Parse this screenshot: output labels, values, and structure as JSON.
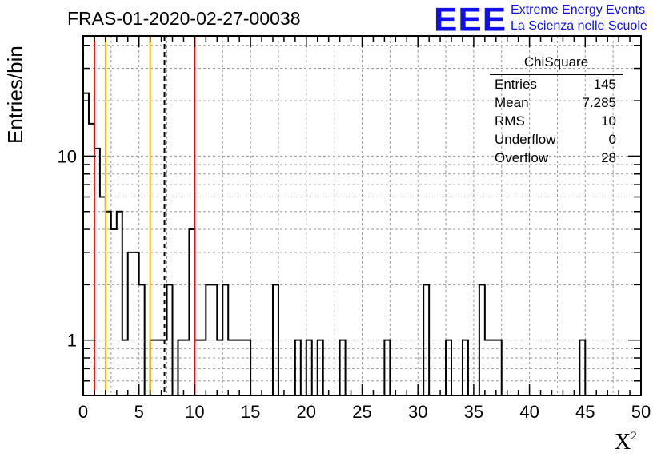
{
  "header": {
    "title": "FRAS-01-2020-02-27-00038",
    "logo": "EEE",
    "logo_line1": "Extreme Energy Events",
    "logo_line2": "La Scienza nelle Scuole"
  },
  "stats_box": {
    "title": "ChiSquare",
    "rows": [
      {
        "label": "Entries",
        "value": "145"
      },
      {
        "label": "Mean",
        "value": "7.285"
      },
      {
        "label": "RMS",
        "value": "10"
      },
      {
        "label": "Underflow",
        "value": "0"
      },
      {
        "label": "Overflow",
        "value": "28"
      }
    ]
  },
  "chart_data": {
    "type": "bar",
    "subtype": "histogram",
    "ylabel": "Entries/bin",
    "xlabel": "X",
    "xlabel_superscript": "2",
    "xlim": [
      0,
      50
    ],
    "ylim": [
      0.5,
      45
    ],
    "yscale": "log",
    "bin_width": 0.5,
    "x_ticks": [
      0,
      5,
      10,
      15,
      20,
      25,
      30,
      35,
      40,
      45,
      50
    ],
    "x_tick_labels": [
      "0",
      "5",
      "10",
      "15",
      "20",
      "25",
      "30",
      "35",
      "40",
      "45",
      "50"
    ],
    "y_ticks": [
      1,
      10
    ],
    "y_tick_labels": [
      "1",
      "10"
    ],
    "grid": true,
    "bins_low_edge": [
      0,
      0.5,
      1,
      1.5,
      2,
      2.5,
      3,
      3.5,
      4,
      4.5,
      5,
      5.5,
      6,
      7,
      7.5,
      8.5,
      9.5,
      10,
      11,
      12,
      12.5,
      13,
      14.5,
      17,
      19,
      19.5,
      20,
      20.5,
      21,
      23,
      27,
      30.5,
      32.5,
      34,
      35.5,
      36,
      36.5,
      44.5
    ],
    "bins_high_edge": [
      0.5,
      1,
      1.5,
      2,
      2.5,
      3,
      3.5,
      4,
      4.5,
      5,
      5.5,
      6,
      7,
      7.5,
      8,
      9.5,
      10,
      11,
      12,
      12.5,
      13,
      14.5,
      15,
      17.5,
      19.5,
      20,
      20.5,
      21,
      21.5,
      23.5,
      27.5,
      31,
      33,
      34.5,
      36,
      36.5,
      37.5,
      45
    ],
    "counts": [
      22,
      15,
      11,
      6,
      5,
      4,
      5,
      1,
      3,
      3,
      2,
      0,
      1,
      1,
      2,
      1,
      4,
      1,
      2,
      1,
      2,
      1,
      1,
      2,
      1,
      0,
      1,
      0,
      1,
      1,
      1,
      2,
      1,
      1,
      2,
      1,
      1,
      1
    ],
    "vertical_lines": [
      {
        "x": 1,
        "color": "#dd1111",
        "style": "solid"
      },
      {
        "x": 2,
        "color": "#f0c000",
        "style": "solid"
      },
      {
        "x": 6,
        "color": "#f0c000",
        "style": "solid"
      },
      {
        "x": 7.285,
        "color": "#000000",
        "style": "dashed"
      },
      {
        "x": 10,
        "color": "#dd1111",
        "style": "solid"
      }
    ]
  }
}
